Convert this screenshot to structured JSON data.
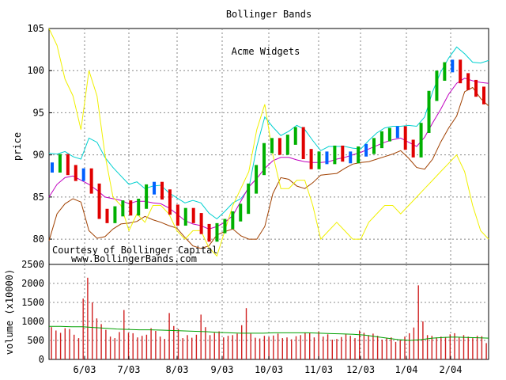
{
  "chart_data": [
    {
      "type": "line",
      "title": "Bollinger Bands",
      "annotation_title": "Acme Widgets",
      "credit": [
        "Courtesy of Bollinger Capital",
        "www.BollingerBands.com"
      ],
      "ylabel": "price",
      "ylim": [
        77,
        105
      ],
      "yticks": [
        80,
        85,
        90,
        95,
        100,
        105
      ],
      "x_date_range": [
        "2003-05-12",
        "2004-03-05"
      ],
      "grid": true,
      "colors": {
        "upper_band": "#00d0d0",
        "lower_band": "#a04000",
        "middle_band": "#c000c0",
        "bandwidth": "#f0f000",
        "bar_up": "#00b000",
        "bar_down": "#e00000",
        "bar_neutral": "#0060ff"
      },
      "series": [
        {
          "name": "",
          "key": "upper_band",
          "values": [
            90.2,
            90.1,
            90.4,
            89.8,
            89.5,
            92,
            91.5,
            89.7,
            88.5,
            87.5,
            86.5,
            86.8,
            86,
            86.3,
            86.4,
            85.5,
            84.9,
            84.3,
            84.6,
            84.3,
            83.1,
            82.4,
            83.3,
            84.3,
            84.8,
            86,
            91,
            94.5,
            93.3,
            92.3,
            92.8,
            93.5,
            93,
            91.7,
            90.5,
            91,
            91,
            91,
            90.8,
            90.7,
            91.7,
            92.6,
            93.2,
            93.4,
            93.4,
            93.5,
            93.4,
            94.5,
            97.5,
            99.8,
            101.5,
            102.8,
            102,
            101,
            100.9,
            101.2
          ]
        },
        {
          "name": "",
          "key": "middle_band",
          "values": [
            85,
            86.5,
            87.3,
            87.5,
            87,
            86.5,
            85.8,
            85,
            84.8,
            84.6,
            84.2,
            84.5,
            84.5,
            84.3,
            84.2,
            83.7,
            83,
            82.2,
            81.8,
            81.6,
            81.2,
            81.5,
            82,
            82.8,
            84.5,
            86.2,
            87.2,
            88.4,
            89.3,
            89.7,
            89.7,
            89.4,
            89.2,
            89.1,
            89.1,
            89.2,
            89.5,
            89.7,
            90,
            90.3,
            90.7,
            91.1,
            91.5,
            91.8,
            92,
            91.5,
            91,
            92.1,
            93.8,
            95.4,
            97.2,
            98.5,
            99.1,
            98.8,
            98.6,
            98.5
          ]
        },
        {
          "name": "",
          "key": "lower_band",
          "values": [
            79.8,
            83,
            84.2,
            84.8,
            84.4,
            81,
            80.1,
            80.3,
            81.2,
            81.8,
            81.9,
            82.1,
            82.7,
            82.3,
            82,
            81.6,
            81.3,
            80.2,
            79.2,
            78.9,
            79.2,
            80.5,
            80.9,
            81.2,
            80.4,
            80,
            80,
            81.5,
            85.4,
            87.3,
            87.1,
            86.3,
            86,
            86.7,
            87.6,
            87.7,
            87.8,
            88.4,
            88.9,
            89.1,
            89.2,
            89.5,
            89.8,
            90.1,
            90.5,
            89.6,
            88.5,
            88.3,
            89.5,
            91.5,
            93.2,
            94.6,
            97.5,
            98,
            96.7,
            95.8
          ]
        },
        {
          "name": "",
          "key": "bandwidth",
          "values": [
            105,
            103,
            99,
            97,
            93,
            100,
            97,
            90,
            85,
            84,
            81,
            83,
            82,
            84,
            84,
            83,
            81,
            80,
            81,
            81,
            79,
            78,
            81,
            84,
            86,
            88,
            93,
            96,
            90,
            86,
            86,
            87,
            87,
            84,
            80,
            81,
            82,
            81,
            80,
            80,
            82,
            83,
            84,
            84,
            83,
            84,
            85,
            86,
            87,
            88,
            89,
            90,
            88,
            84,
            81,
            80
          ]
        }
      ],
      "bars": {
        "description": "daily high-low bars with open/close ticks",
        "close": [
          88.5,
          89.5,
          88.2,
          87.5,
          87.8,
          86,
          83,
          82.5,
          83.3,
          84,
          83.4,
          84.2,
          85.9,
          86.2,
          85.3,
          83.5,
          82.2,
          83.1,
          82.5,
          81.2,
          80.3,
          81.3,
          81.8,
          82.7,
          83.6,
          86,
          88.2,
          90.8,
          91.4,
          90.6,
          91.8,
          92.7,
          90.1,
          88.9,
          89.8,
          89.5,
          90.5,
          89.8,
          89.6,
          90.4,
          90.7,
          91.4,
          92.2,
          92.6,
          92.8,
          91.2,
          90.3,
          93.2,
          97,
          99.4,
          100.4,
          100.7,
          99.1,
          98.3,
          97.5,
          96.6
        ]
      }
    },
    {
      "type": "bar",
      "ylabel": "volume (x10000)",
      "ylim": [
        0,
        2500
      ],
      "yticks": [
        0,
        500,
        1000,
        1500,
        2000,
        2500
      ],
      "x_tick_labels": [
        "6/03",
        "7/03",
        "8/03",
        "9/03",
        "10/03",
        "11/03",
        "12/03",
        "1/04",
        "2/04"
      ],
      "colors": {
        "bars": "#d02020",
        "average": "#00a000"
      },
      "series": [
        {
          "name": "",
          "key": "volume",
          "values": [
            850,
            760,
            700,
            820,
            800,
            650,
            560,
            1600,
            2150,
            1500,
            1080,
            930,
            780,
            600,
            560,
            720,
            1300,
            700,
            690,
            580,
            620,
            650,
            820,
            750,
            600,
            540,
            1220,
            880,
            800,
            560,
            640,
            570,
            650,
            1180,
            850,
            640,
            700,
            740,
            580,
            620,
            640,
            680,
            900,
            1350,
            680,
            570,
            550,
            620,
            590,
            630,
            680,
            560,
            580,
            530,
            610,
            640,
            700,
            690,
            580,
            740,
            600,
            660,
            520,
            540,
            590,
            660,
            620,
            560,
            760,
            700,
            640,
            680,
            620,
            520,
            560,
            580,
            460,
            520,
            600,
            690,
            840,
            1950,
            1000,
            640,
            620,
            580,
            600,
            590,
            660,
            690,
            580,
            640,
            600,
            560,
            620,
            610,
            430
          ]
        },
        {
          "name": "",
          "key": "volume_average",
          "values": [
            870,
            870,
            860,
            860,
            840,
            820,
            800,
            790,
            780,
            780,
            770,
            760,
            750,
            740,
            730,
            710,
            700,
            690,
            690,
            690,
            700,
            700,
            700,
            700,
            690,
            680,
            670,
            660,
            640,
            600,
            560,
            520,
            500,
            520,
            560,
            580,
            590,
            580,
            570,
            560
          ]
        }
      ]
    }
  ]
}
